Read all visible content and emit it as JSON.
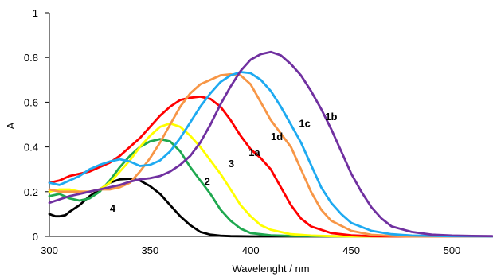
{
  "chart_data": {
    "type": "line",
    "title": "",
    "xlabel": "Wavelenght / nm",
    "ylabel": "A",
    "xlim": [
      300,
      520
    ],
    "ylim": [
      0,
      1
    ],
    "xticks": [
      300,
      350,
      400,
      450,
      500
    ],
    "yticks": [
      0,
      0.2,
      0.4,
      0.6,
      0.8,
      1
    ],
    "ytick_labels": [
      "0",
      "0.2",
      "0.4",
      "0.6",
      "0.8",
      "1"
    ],
    "grid": false,
    "legend": "none",
    "series": [
      {
        "name": "4",
        "color": "#000000",
        "label_at": [
          330,
          0.11
        ],
        "x": [
          300,
          303,
          305,
          308,
          310,
          315,
          320,
          325,
          330,
          335,
          340,
          345,
          350,
          355,
          360,
          365,
          370,
          375,
          380,
          385,
          390,
          400,
          420,
          450,
          520
        ],
        "y": [
          0.1,
          0.09,
          0.09,
          0.095,
          0.11,
          0.14,
          0.18,
          0.21,
          0.24,
          0.255,
          0.258,
          0.25,
          0.225,
          0.19,
          0.14,
          0.09,
          0.05,
          0.02,
          0.008,
          0.003,
          0.001,
          0,
          0,
          0,
          0
        ]
      },
      {
        "name": "2",
        "color": "#1fa84f",
        "label_at": [
          377,
          0.23
        ],
        "x": [
          300,
          305,
          310,
          315,
          320,
          325,
          330,
          335,
          340,
          345,
          350,
          355,
          360,
          365,
          370,
          375,
          380,
          385,
          390,
          395,
          400,
          410,
          420,
          450,
          520
        ],
        "y": [
          0.18,
          0.19,
          0.17,
          0.16,
          0.17,
          0.2,
          0.25,
          0.31,
          0.36,
          0.4,
          0.425,
          0.435,
          0.425,
          0.38,
          0.31,
          0.25,
          0.19,
          0.12,
          0.07,
          0.035,
          0.015,
          0.005,
          0.002,
          0,
          0
        ]
      },
      {
        "name": "3",
        "color": "#ffff00",
        "label_at": [
          389,
          0.31
        ],
        "x": [
          300,
          305,
          310,
          315,
          320,
          325,
          330,
          335,
          340,
          345,
          350,
          355,
          360,
          365,
          370,
          375,
          380,
          385,
          390,
          395,
          400,
          405,
          410,
          420,
          430,
          440,
          450,
          520
        ],
        "y": [
          0.2,
          0.21,
          0.21,
          0.2,
          0.2,
          0.21,
          0.24,
          0.29,
          0.34,
          0.4,
          0.45,
          0.49,
          0.505,
          0.49,
          0.45,
          0.4,
          0.34,
          0.28,
          0.21,
          0.14,
          0.09,
          0.05,
          0.03,
          0.01,
          0.004,
          0.001,
          0,
          0
        ]
      },
      {
        "name": "1a",
        "color": "#ff0000",
        "label_at": [
          399,
          0.36
        ],
        "x": [
          300,
          305,
          310,
          315,
          320,
          325,
          330,
          335,
          340,
          345,
          350,
          355,
          360,
          365,
          370,
          375,
          380,
          385,
          390,
          395,
          400,
          405,
          410,
          415,
          420,
          425,
          430,
          440,
          450,
          460,
          470,
          520
        ],
        "y": [
          0.24,
          0.25,
          0.27,
          0.28,
          0.29,
          0.31,
          0.33,
          0.36,
          0.4,
          0.44,
          0.49,
          0.54,
          0.58,
          0.61,
          0.62,
          0.625,
          0.615,
          0.58,
          0.52,
          0.45,
          0.39,
          0.35,
          0.3,
          0.22,
          0.14,
          0.08,
          0.045,
          0.015,
          0.005,
          0.001,
          0,
          0
        ]
      },
      {
        "name": "1d",
        "color": "#f79646",
        "label_at": [
          410,
          0.43
        ],
        "x": [
          300,
          305,
          310,
          315,
          320,
          325,
          330,
          335,
          340,
          345,
          350,
          355,
          360,
          365,
          370,
          375,
          380,
          385,
          390,
          395,
          400,
          405,
          410,
          415,
          420,
          425,
          430,
          435,
          440,
          450,
          460,
          470,
          480,
          520
        ],
        "y": [
          0.21,
          0.2,
          0.2,
          0.2,
          0.2,
          0.21,
          0.21,
          0.22,
          0.24,
          0.29,
          0.35,
          0.42,
          0.5,
          0.58,
          0.64,
          0.68,
          0.7,
          0.72,
          0.725,
          0.72,
          0.68,
          0.6,
          0.52,
          0.46,
          0.4,
          0.3,
          0.2,
          0.12,
          0.07,
          0.025,
          0.007,
          0.002,
          0,
          0
        ]
      },
      {
        "name": "1c",
        "color": "#1eaaf1",
        "label_at": [
          424,
          0.49
        ],
        "x": [
          300,
          305,
          310,
          315,
          320,
          325,
          330,
          335,
          340,
          345,
          350,
          355,
          360,
          365,
          370,
          375,
          380,
          385,
          390,
          395,
          400,
          405,
          410,
          415,
          420,
          425,
          430,
          435,
          440,
          445,
          450,
          460,
          470,
          480,
          490,
          500,
          520
        ],
        "y": [
          0.24,
          0.23,
          0.25,
          0.27,
          0.3,
          0.32,
          0.335,
          0.345,
          0.335,
          0.315,
          0.32,
          0.34,
          0.38,
          0.44,
          0.51,
          0.58,
          0.64,
          0.69,
          0.72,
          0.735,
          0.73,
          0.7,
          0.65,
          0.58,
          0.5,
          0.42,
          0.32,
          0.22,
          0.15,
          0.1,
          0.06,
          0.025,
          0.01,
          0.004,
          0.002,
          0.001,
          0
        ]
      },
      {
        "name": "1b",
        "color": "#7030a0",
        "label_at": [
          437,
          0.52
        ],
        "x": [
          300,
          305,
          310,
          315,
          320,
          325,
          330,
          335,
          340,
          345,
          350,
          355,
          360,
          365,
          370,
          375,
          380,
          385,
          390,
          395,
          400,
          405,
          410,
          415,
          420,
          425,
          430,
          435,
          440,
          445,
          450,
          455,
          460,
          465,
          470,
          480,
          490,
          500,
          510,
          520
        ],
        "y": [
          0.15,
          0.165,
          0.18,
          0.19,
          0.2,
          0.21,
          0.22,
          0.23,
          0.245,
          0.255,
          0.26,
          0.27,
          0.29,
          0.32,
          0.36,
          0.42,
          0.5,
          0.59,
          0.67,
          0.74,
          0.79,
          0.815,
          0.825,
          0.81,
          0.77,
          0.72,
          0.65,
          0.57,
          0.48,
          0.38,
          0.28,
          0.2,
          0.13,
          0.08,
          0.045,
          0.02,
          0.008,
          0.004,
          0.002,
          0.001
        ]
      }
    ]
  }
}
